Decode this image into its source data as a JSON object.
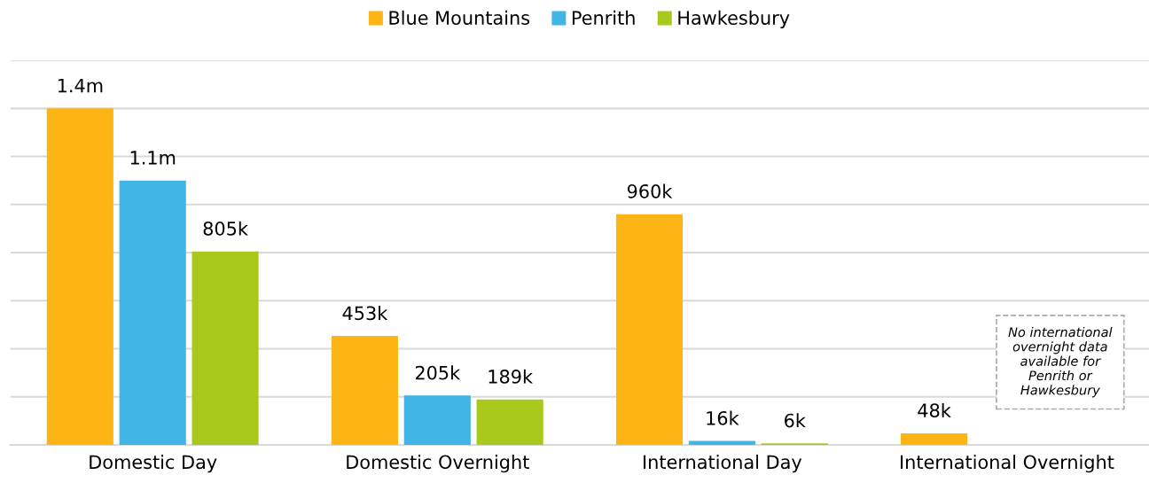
{
  "chart_data": {
    "type": "bar",
    "categories": [
      "Domestic Day",
      "Domestic Overnight",
      "International Day",
      "International Overnight"
    ],
    "series": [
      {
        "name": "Blue Mountains",
        "color": "#fdb515",
        "values": [
          1400000,
          453000,
          960000,
          48000
        ],
        "value_labels": [
          "1.4m",
          "453k",
          "960k",
          "48k"
        ]
      },
      {
        "name": "Penrith",
        "color": "#41b6e6",
        "values": [
          1100000,
          205000,
          16000,
          null
        ],
        "value_labels": [
          "1.1m",
          "205k",
          "16k",
          null
        ]
      },
      {
        "name": "Hawkesbury",
        "color": "#a8c91c",
        "values": [
          805000,
          189000,
          6000,
          null
        ],
        "value_labels": [
          "805k",
          "189k",
          "6k",
          null
        ]
      }
    ],
    "ylim": [
      0,
      1600000
    ],
    "yticks": [
      {
        "value": 0,
        "label": null
      },
      {
        "value": 200000,
        "label": null
      },
      {
        "value": 400000,
        "label": null
      },
      {
        "value": 600000,
        "label": null
      },
      {
        "value": 800000,
        "label": null
      },
      {
        "value": 1000000,
        "label": null
      },
      {
        "value": 1200000,
        "label": null
      },
      {
        "value": 1400000,
        "label": null
      },
      {
        "value": 1600000,
        "label": null
      }
    ],
    "tick_labels": "x",
    "grid": "y",
    "legend": "top",
    "annotations": [
      "No international\novernight data\navailable for\nPenrith or\nHawkesbury"
    ]
  }
}
